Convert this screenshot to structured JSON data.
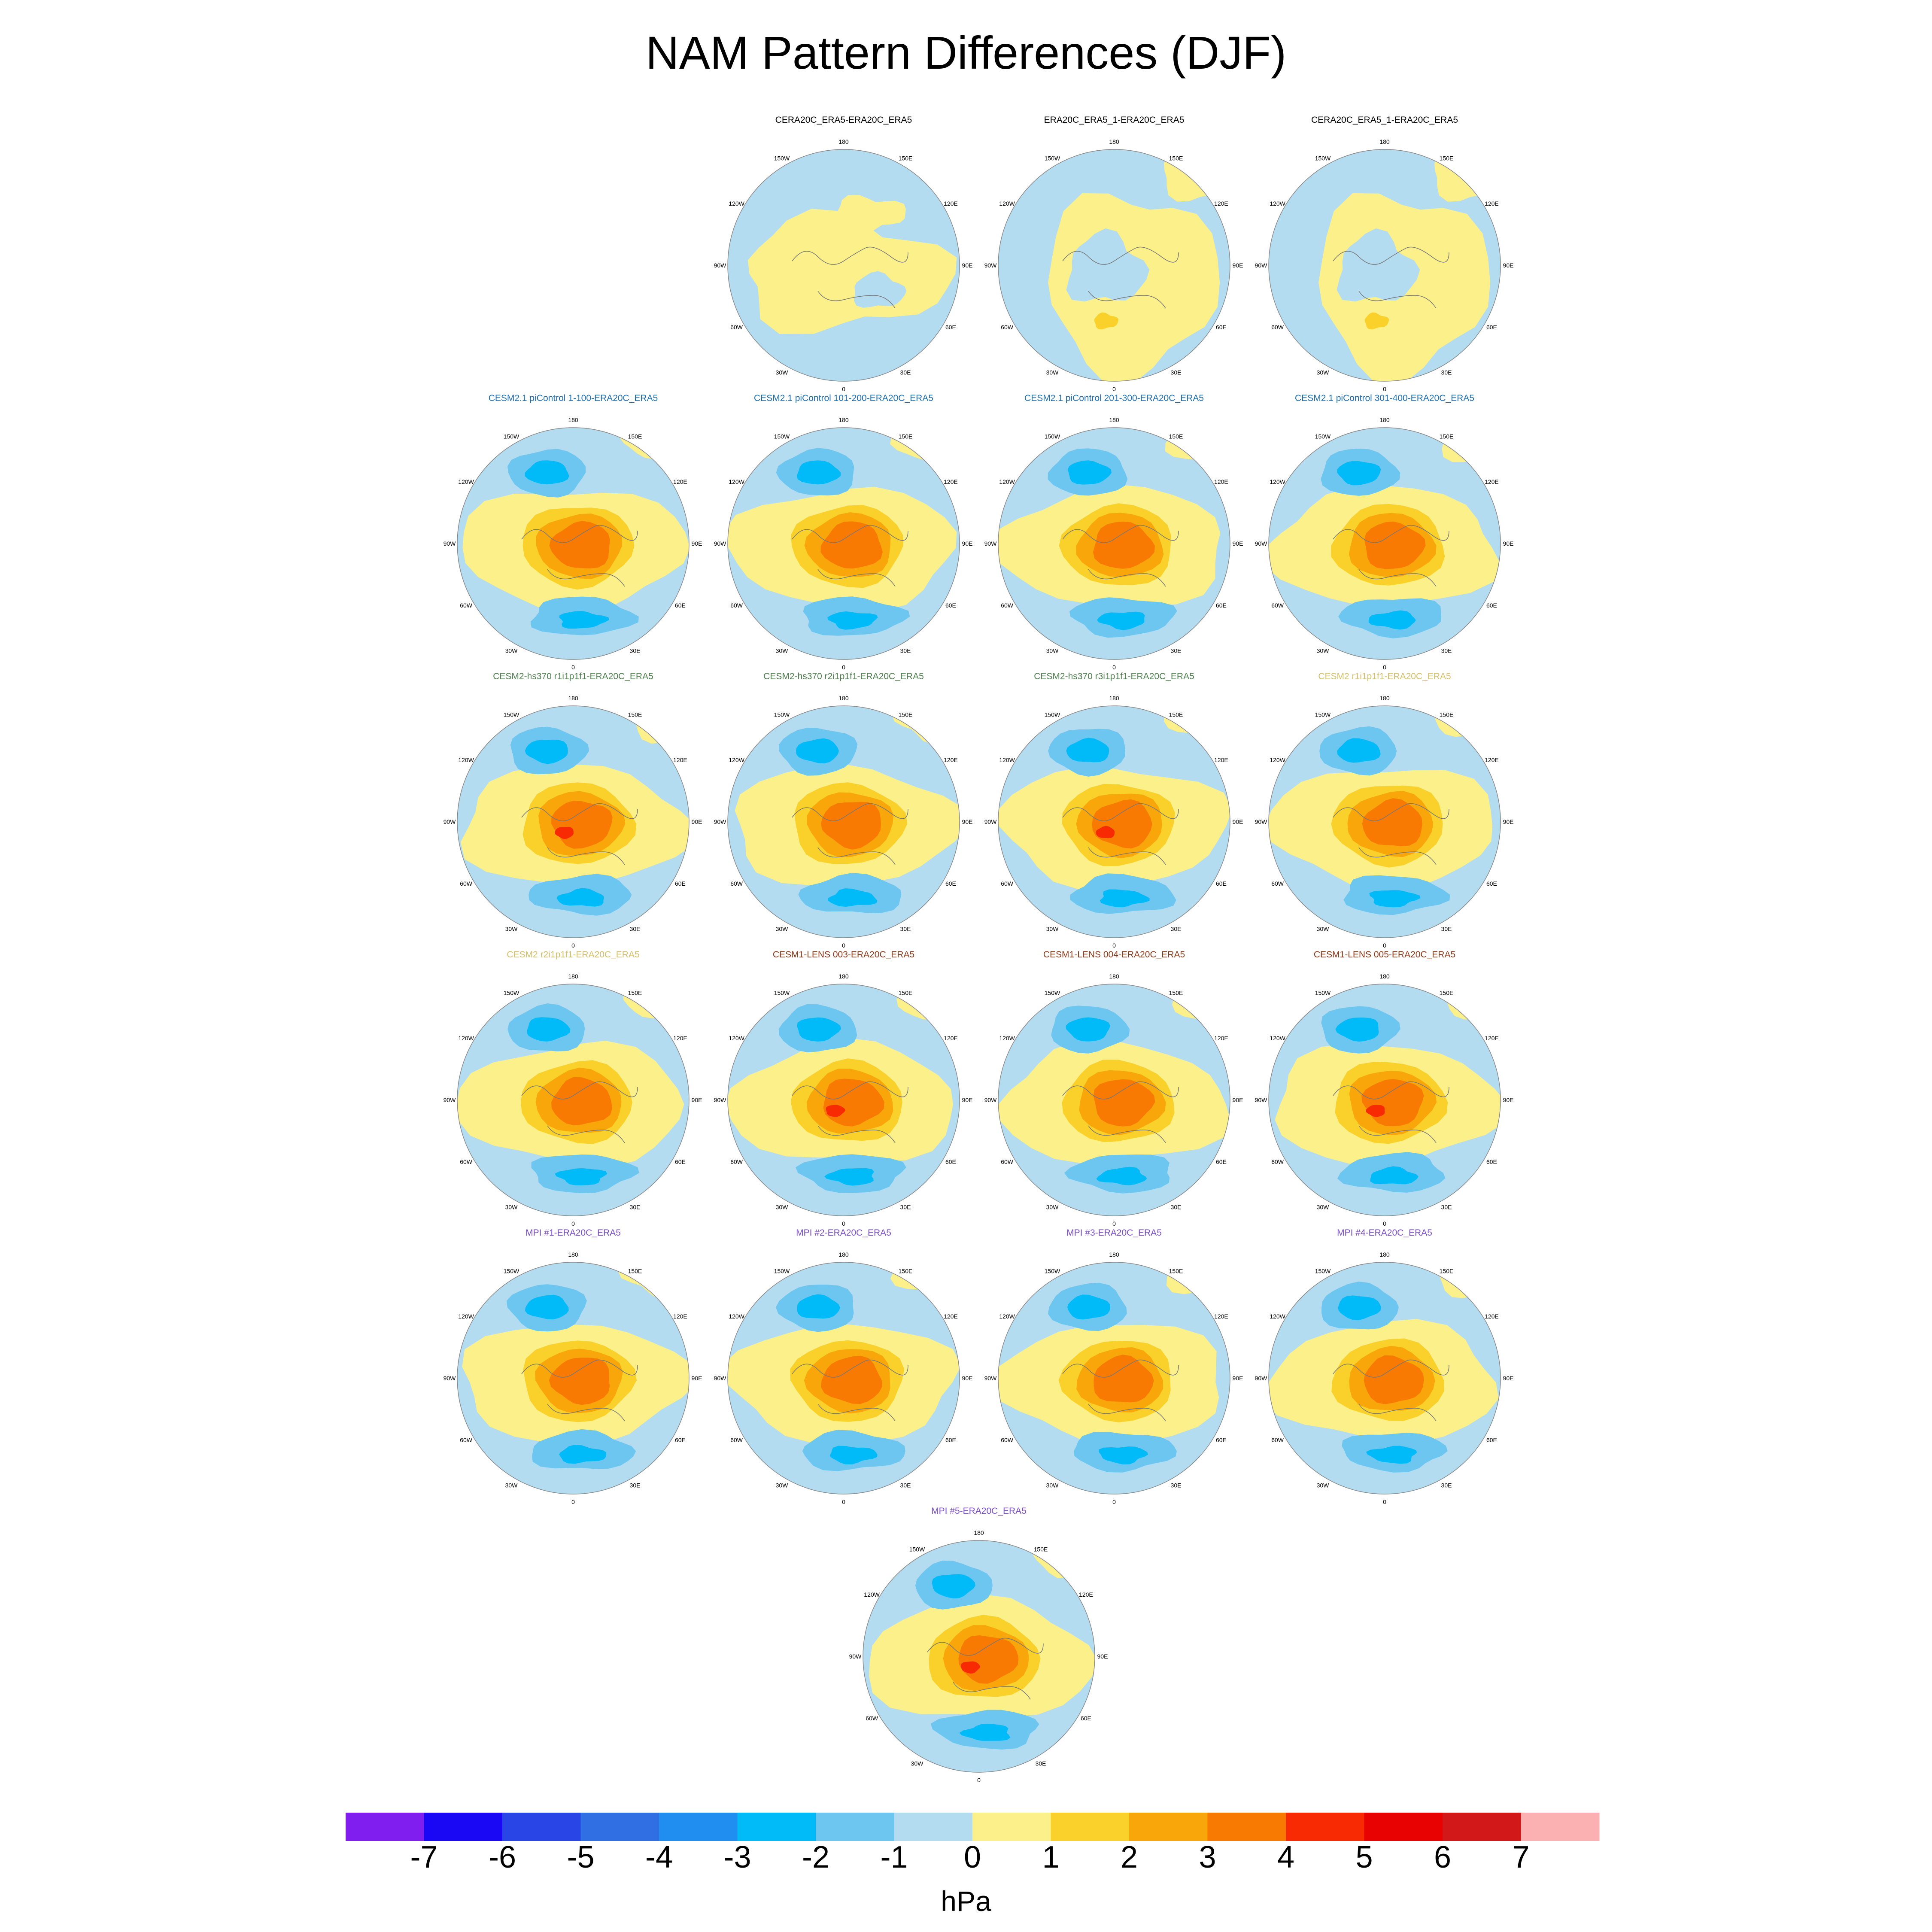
{
  "title": "NAM Pattern Differences (DJF)",
  "units": "hPa",
  "panels": [
    {
      "title": "CERA20C_ERA5-ERA20C_ERA5",
      "color": "#000000",
      "style": "reanalysis",
      "strength": 0.0
    },
    {
      "title": "ERA20C_ERA5_1-ERA20C_ERA5",
      "color": "#000000",
      "style": "reanalysis2",
      "strength": 0.0
    },
    {
      "title": "CERA20C_ERA5_1-ERA20C_ERA5",
      "color": "#000000",
      "style": "reanalysis2",
      "strength": 0.0
    },
    {
      "title": "CESM2.1 piControl 1-100-ERA20C_ERA5",
      "color": "#1f6fb0",
      "style": "model",
      "strength": 3.5
    },
    {
      "title": "CESM2.1 piControl 101-200-ERA20C_ERA5",
      "color": "#1f6fb0",
      "style": "model",
      "strength": 3.2
    },
    {
      "title": "CESM2.1 piControl 201-300-ERA20C_ERA5",
      "color": "#1f6fb0",
      "style": "model",
      "strength": 3.4
    },
    {
      "title": "CESM2.1 piControl 301-400-ERA20C_ERA5",
      "color": "#1f6fb0",
      "style": "model",
      "strength": 3.4
    },
    {
      "title": "CESM2-hs370 r1i1p1f1-ERA20C_ERA5",
      "color": "#4f7f4f",
      "style": "model",
      "strength": 4.2
    },
    {
      "title": "CESM2-hs370 r2i1p1f1-ERA20C_ERA5",
      "color": "#4f7f4f",
      "style": "model",
      "strength": 3.8
    },
    {
      "title": "CESM2-hs370 r3i1p1f1-ERA20C_ERA5",
      "color": "#4f7f4f",
      "style": "model",
      "strength": 4.0
    },
    {
      "title": "CESM2 r1i1p1f1-ERA20C_ERA5",
      "color": "#d4c06a",
      "style": "model",
      "strength": 3.8
    },
    {
      "title": "CESM2 r2i1p1f1-ERA20C_ERA5",
      "color": "#d4c06a",
      "style": "model",
      "strength": 3.6
    },
    {
      "title": "CESM1-LENS 003-ERA20C_ERA5",
      "color": "#8b3a1a",
      "style": "model",
      "strength": 4.2
    },
    {
      "title": "CESM1-LENS 004-ERA20C_ERA5",
      "color": "#8b3a1a",
      "style": "model",
      "strength": 3.8
    },
    {
      "title": "CESM1-LENS 005-ERA20C_ERA5",
      "color": "#8b3a1a",
      "style": "model",
      "strength": 4.3
    },
    {
      "title": "MPI #1-ERA20C_ERA5",
      "color": "#7b4fc4",
      "style": "model",
      "strength": 3.6
    },
    {
      "title": "MPI #2-ERA20C_ERA5",
      "color": "#7b4fc4",
      "style": "model",
      "strength": 3.6
    },
    {
      "title": "MPI #3-ERA20C_ERA5",
      "color": "#7b4fc4",
      "style": "model",
      "strength": 3.3
    },
    {
      "title": "MPI #4-ERA20C_ERA5",
      "color": "#7b4fc4",
      "style": "model",
      "strength": 3.3
    },
    {
      "title": "MPI #5-ERA20C_ERA5",
      "color": "#7b4fc4",
      "style": "model",
      "strength": 4.8
    }
  ],
  "longitude_labels": [
    "180",
    "150E",
    "120E",
    "90E",
    "60E",
    "30E",
    "0",
    "30W",
    "60W",
    "90W",
    "120W",
    "150W"
  ],
  "colorbar": {
    "colors": [
      "#7f1eee",
      "#1a08f5",
      "#2a45e6",
      "#2f6fe3",
      "#1f8ef0",
      "#00bbf8",
      "#6cc6f0",
      "#b3dcf0",
      "#fbf08a",
      "#fad12a",
      "#f9a60b",
      "#f87a02",
      "#f72a04",
      "#e80202",
      "#d21818",
      "#fbb1b1"
    ],
    "tick_labels": [
      "-7",
      "-6",
      "-5",
      "-4",
      "-3",
      "-2",
      "-1",
      "0",
      "1",
      "2",
      "3",
      "4",
      "5",
      "6",
      "7"
    ]
  }
}
